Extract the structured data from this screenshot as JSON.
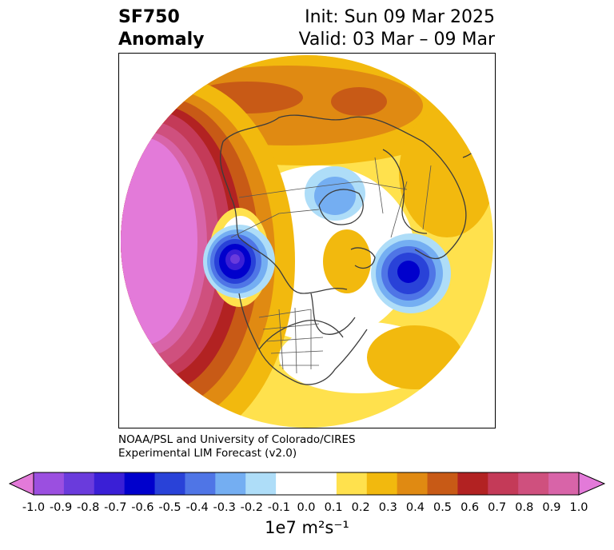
{
  "title": {
    "line1": "SF750",
    "line2": "Anomaly",
    "init": "Init: Sun 09 Mar 2025",
    "valid": "Valid: 03 Mar – 09 Mar"
  },
  "credit": {
    "line1": "NOAA/PSL and University of Colorado/CIRES",
    "line2": "Experimental LIM Forecast (v2.0)"
  },
  "colorbar": {
    "units": "1e7 m²s⁻¹",
    "ticks": [
      "-1.0",
      "-0.9",
      "-0.8",
      "-0.7",
      "-0.6",
      "-0.5",
      "-0.4",
      "-0.3",
      "-0.2",
      "-0.1",
      "0.0",
      "0.1",
      "0.2",
      "0.3",
      "0.4",
      "0.5",
      "0.6",
      "0.7",
      "0.8",
      "0.9",
      "1.0"
    ],
    "colors": [
      "#e37ad9",
      "#9b4fe0",
      "#6a3bdc",
      "#3a1fd6",
      "#0000cc",
      "#2942d8",
      "#4f75e6",
      "#74aef2",
      "#aeddf8",
      "#ffffff",
      "#ffffff",
      "#ffe14d",
      "#f2b90e",
      "#e08a12",
      "#c85a16",
      "#b22222",
      "#c43a58",
      "#cf507e",
      "#d864a8",
      "#e37ad9"
    ]
  },
  "map": {
    "projection": "north-polar-stereographic",
    "features": [
      "coastlines",
      "country-borders",
      "us-state-borders"
    ],
    "anomaly_centers": [
      {
        "name": "pacific-positive",
        "level": "1.0"
      },
      {
        "name": "western-canada-negative",
        "level": "-0.7"
      },
      {
        "name": "north-atlantic-negative",
        "level": "-0.6"
      },
      {
        "name": "arctic-negative",
        "level": "-0.3"
      },
      {
        "name": "siberia-positive",
        "level": "0.4"
      },
      {
        "name": "central-atlantic-positive",
        "level": "0.2"
      }
    ]
  }
}
